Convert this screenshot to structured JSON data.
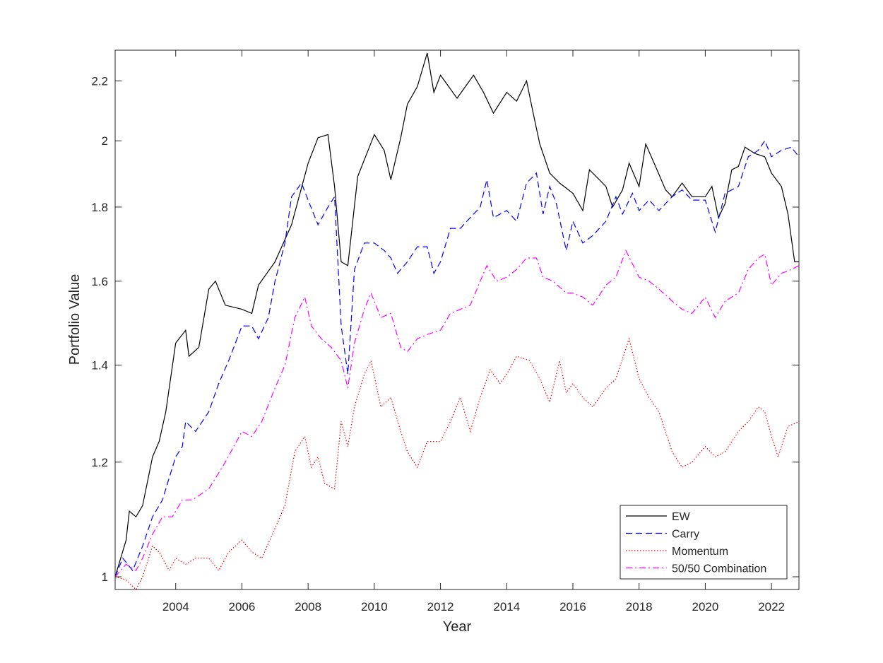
{
  "chart_data": {
    "type": "line",
    "title": "",
    "xlabel": "Year",
    "ylabel": "Portfolio Value",
    "xlim": [
      2002.17,
      2022.83
    ],
    "ylim": [
      0.98,
      2.31
    ],
    "y_scale": "log",
    "grid": false,
    "legend_position": "bottom-right",
    "x_ticks": [
      2004,
      2006,
      2008,
      2010,
      2012,
      2014,
      2016,
      2018,
      2020,
      2022
    ],
    "x_tick_labels": [
      "2004",
      "2006",
      "2008",
      "2010",
      "2012",
      "2014",
      "2016",
      "2018",
      "2020",
      "2022"
    ],
    "y_ticks": [
      1,
      1.2,
      1.4,
      1.6,
      1.8,
      2,
      2.2
    ],
    "y_tick_labels": [
      "1",
      "1.2",
      "1.4",
      "1.6",
      "1.8",
      "2",
      "2.2"
    ],
    "series": [
      {
        "name": "EW",
        "color": "#000000",
        "dash": "solid",
        "points": [
          [
            2002.17,
            1.0
          ],
          [
            2002.5,
            1.06
          ],
          [
            2002.6,
            1.11
          ],
          [
            2002.8,
            1.1
          ],
          [
            2003.0,
            1.12
          ],
          [
            2003.3,
            1.21
          ],
          [
            2003.5,
            1.24
          ],
          [
            2003.7,
            1.3
          ],
          [
            2004.0,
            1.45
          ],
          [
            2004.3,
            1.48
          ],
          [
            2004.4,
            1.42
          ],
          [
            2004.7,
            1.44
          ],
          [
            2005.0,
            1.58
          ],
          [
            2005.2,
            1.6
          ],
          [
            2005.5,
            1.54
          ],
          [
            2006.0,
            1.53
          ],
          [
            2006.3,
            1.52
          ],
          [
            2006.5,
            1.59
          ],
          [
            2007.0,
            1.65
          ],
          [
            2007.5,
            1.75
          ],
          [
            2008.0,
            1.93
          ],
          [
            2008.3,
            2.01
          ],
          [
            2008.6,
            2.02
          ],
          [
            2008.8,
            1.86
          ],
          [
            2009.0,
            1.65
          ],
          [
            2009.2,
            1.64
          ],
          [
            2009.5,
            1.89
          ],
          [
            2010.0,
            2.02
          ],
          [
            2010.3,
            1.97
          ],
          [
            2010.5,
            1.88
          ],
          [
            2010.8,
            2.01
          ],
          [
            2011.0,
            2.12
          ],
          [
            2011.3,
            2.18
          ],
          [
            2011.6,
            2.3
          ],
          [
            2011.8,
            2.16
          ],
          [
            2012.0,
            2.22
          ],
          [
            2012.5,
            2.14
          ],
          [
            2013.0,
            2.22
          ],
          [
            2013.3,
            2.16
          ],
          [
            2013.6,
            2.09
          ],
          [
            2014.0,
            2.16
          ],
          [
            2014.3,
            2.13
          ],
          [
            2014.6,
            2.2
          ],
          [
            2014.8,
            2.09
          ],
          [
            2015.0,
            1.99
          ],
          [
            2015.3,
            1.9
          ],
          [
            2015.6,
            1.87
          ],
          [
            2016.0,
            1.84
          ],
          [
            2016.3,
            1.79
          ],
          [
            2016.5,
            1.91
          ],
          [
            2016.8,
            1.88
          ],
          [
            2017.0,
            1.86
          ],
          [
            2017.2,
            1.8
          ],
          [
            2017.5,
            1.85
          ],
          [
            2017.7,
            1.93
          ],
          [
            2018.0,
            1.86
          ],
          [
            2018.2,
            1.99
          ],
          [
            2018.5,
            1.92
          ],
          [
            2018.8,
            1.85
          ],
          [
            2019.0,
            1.83
          ],
          [
            2019.3,
            1.87
          ],
          [
            2019.6,
            1.83
          ],
          [
            2020.0,
            1.83
          ],
          [
            2020.2,
            1.86
          ],
          [
            2020.4,
            1.77
          ],
          [
            2020.6,
            1.81
          ],
          [
            2020.8,
            1.91
          ],
          [
            2021.0,
            1.92
          ],
          [
            2021.2,
            1.98
          ],
          [
            2021.5,
            1.96
          ],
          [
            2021.8,
            1.95
          ],
          [
            2022.0,
            1.9
          ],
          [
            2022.3,
            1.86
          ],
          [
            2022.5,
            1.78
          ],
          [
            2022.7,
            1.65
          ],
          [
            2022.83,
            1.65
          ]
        ]
      },
      {
        "name": "Carry",
        "color": "#0000ff",
        "dash": "dashed",
        "points": [
          [
            2002.17,
            1.0
          ],
          [
            2002.4,
            1.03
          ],
          [
            2002.7,
            1.01
          ],
          [
            2003.0,
            1.05
          ],
          [
            2003.3,
            1.1
          ],
          [
            2003.6,
            1.13
          ],
          [
            2003.8,
            1.17
          ],
          [
            2004.0,
            1.21
          ],
          [
            2004.2,
            1.23
          ],
          [
            2004.3,
            1.28
          ],
          [
            2004.6,
            1.26
          ],
          [
            2005.0,
            1.3
          ],
          [
            2005.3,
            1.36
          ],
          [
            2005.6,
            1.41
          ],
          [
            2006.0,
            1.49
          ],
          [
            2006.3,
            1.49
          ],
          [
            2006.5,
            1.46
          ],
          [
            2006.8,
            1.51
          ],
          [
            2007.0,
            1.6
          ],
          [
            2007.3,
            1.7
          ],
          [
            2007.5,
            1.83
          ],
          [
            2007.8,
            1.87
          ],
          [
            2008.0,
            1.82
          ],
          [
            2008.3,
            1.75
          ],
          [
            2008.6,
            1.8
          ],
          [
            2008.8,
            1.83
          ],
          [
            2009.0,
            1.49
          ],
          [
            2009.2,
            1.38
          ],
          [
            2009.4,
            1.63
          ],
          [
            2009.7,
            1.7
          ],
          [
            2010.0,
            1.7
          ],
          [
            2010.3,
            1.68
          ],
          [
            2010.5,
            1.66
          ],
          [
            2010.7,
            1.62
          ],
          [
            2011.0,
            1.65
          ],
          [
            2011.3,
            1.69
          ],
          [
            2011.6,
            1.69
          ],
          [
            2011.8,
            1.62
          ],
          [
            2012.0,
            1.65
          ],
          [
            2012.3,
            1.74
          ],
          [
            2012.6,
            1.74
          ],
          [
            2012.9,
            1.77
          ],
          [
            2013.2,
            1.8
          ],
          [
            2013.4,
            1.88
          ],
          [
            2013.6,
            1.77
          ],
          [
            2014.0,
            1.79
          ],
          [
            2014.3,
            1.76
          ],
          [
            2014.6,
            1.87
          ],
          [
            2014.9,
            1.9
          ],
          [
            2015.1,
            1.78
          ],
          [
            2015.3,
            1.86
          ],
          [
            2015.5,
            1.81
          ],
          [
            2015.8,
            1.68
          ],
          [
            2016.0,
            1.76
          ],
          [
            2016.3,
            1.7
          ],
          [
            2016.6,
            1.72
          ],
          [
            2017.0,
            1.76
          ],
          [
            2017.3,
            1.83
          ],
          [
            2017.5,
            1.78
          ],
          [
            2017.8,
            1.84
          ],
          [
            2018.0,
            1.79
          ],
          [
            2018.3,
            1.82
          ],
          [
            2018.6,
            1.79
          ],
          [
            2019.0,
            1.83
          ],
          [
            2019.3,
            1.85
          ],
          [
            2019.6,
            1.82
          ],
          [
            2020.0,
            1.82
          ],
          [
            2020.3,
            1.73
          ],
          [
            2020.6,
            1.84
          ],
          [
            2021.0,
            1.86
          ],
          [
            2021.3,
            1.95
          ],
          [
            2021.6,
            1.97
          ],
          [
            2021.8,
            2.0
          ],
          [
            2022.0,
            1.95
          ],
          [
            2022.3,
            1.97
          ],
          [
            2022.6,
            1.98
          ],
          [
            2022.83,
            1.95
          ]
        ]
      },
      {
        "name": "Momentum",
        "color": "#ff0000",
        "dash": "dotted",
        "points": [
          [
            2002.17,
            1.0
          ],
          [
            2002.5,
            0.995
          ],
          [
            2002.8,
            0.98
          ],
          [
            2003.0,
            1.0
          ],
          [
            2003.3,
            1.05
          ],
          [
            2003.5,
            1.04
          ],
          [
            2003.8,
            1.01
          ],
          [
            2004.0,
            1.03
          ],
          [
            2004.3,
            1.02
          ],
          [
            2004.6,
            1.03
          ],
          [
            2005.0,
            1.03
          ],
          [
            2005.3,
            1.01
          ],
          [
            2005.6,
            1.04
          ],
          [
            2006.0,
            1.06
          ],
          [
            2006.3,
            1.04
          ],
          [
            2006.6,
            1.03
          ],
          [
            2007.0,
            1.08
          ],
          [
            2007.3,
            1.12
          ],
          [
            2007.6,
            1.22
          ],
          [
            2007.9,
            1.25
          ],
          [
            2008.1,
            1.19
          ],
          [
            2008.3,
            1.21
          ],
          [
            2008.5,
            1.16
          ],
          [
            2008.8,
            1.15
          ],
          [
            2009.0,
            1.28
          ],
          [
            2009.2,
            1.23
          ],
          [
            2009.4,
            1.31
          ],
          [
            2009.7,
            1.38
          ],
          [
            2009.9,
            1.41
          ],
          [
            2010.2,
            1.31
          ],
          [
            2010.5,
            1.33
          ],
          [
            2010.8,
            1.26
          ],
          [
            2011.0,
            1.22
          ],
          [
            2011.3,
            1.19
          ],
          [
            2011.6,
            1.24
          ],
          [
            2012.0,
            1.24
          ],
          [
            2012.3,
            1.28
          ],
          [
            2012.6,
            1.33
          ],
          [
            2012.9,
            1.26
          ],
          [
            2013.2,
            1.33
          ],
          [
            2013.5,
            1.39
          ],
          [
            2013.8,
            1.36
          ],
          [
            2014.0,
            1.38
          ],
          [
            2014.3,
            1.42
          ],
          [
            2014.7,
            1.41
          ],
          [
            2015.0,
            1.37
          ],
          [
            2015.3,
            1.32
          ],
          [
            2015.6,
            1.41
          ],
          [
            2015.8,
            1.34
          ],
          [
            2016.0,
            1.36
          ],
          [
            2016.3,
            1.33
          ],
          [
            2016.6,
            1.31
          ],
          [
            2017.0,
            1.35
          ],
          [
            2017.3,
            1.37
          ],
          [
            2017.7,
            1.46
          ],
          [
            2018.0,
            1.37
          ],
          [
            2018.3,
            1.33
          ],
          [
            2018.6,
            1.3
          ],
          [
            2019.0,
            1.22
          ],
          [
            2019.3,
            1.19
          ],
          [
            2019.6,
            1.2
          ],
          [
            2020.0,
            1.23
          ],
          [
            2020.3,
            1.21
          ],
          [
            2020.6,
            1.22
          ],
          [
            2021.0,
            1.26
          ],
          [
            2021.3,
            1.28
          ],
          [
            2021.6,
            1.31
          ],
          [
            2021.8,
            1.3
          ],
          [
            2022.0,
            1.25
          ],
          [
            2022.2,
            1.21
          ],
          [
            2022.5,
            1.27
          ],
          [
            2022.83,
            1.28
          ]
        ]
      },
      {
        "name": "50/50 Combination",
        "color": "#ff00ff",
        "dash": "dashdot",
        "points": [
          [
            2002.17,
            1.0
          ],
          [
            2002.5,
            1.02
          ],
          [
            2002.8,
            1.01
          ],
          [
            2003.0,
            1.03
          ],
          [
            2003.3,
            1.07
          ],
          [
            2003.6,
            1.1
          ],
          [
            2003.9,
            1.1
          ],
          [
            2004.2,
            1.13
          ],
          [
            2004.5,
            1.13
          ],
          [
            2005.0,
            1.15
          ],
          [
            2005.5,
            1.2
          ],
          [
            2006.0,
            1.26
          ],
          [
            2006.3,
            1.25
          ],
          [
            2006.6,
            1.28
          ],
          [
            2007.0,
            1.35
          ],
          [
            2007.3,
            1.4
          ],
          [
            2007.6,
            1.51
          ],
          [
            2007.9,
            1.56
          ],
          [
            2008.1,
            1.49
          ],
          [
            2008.4,
            1.46
          ],
          [
            2008.7,
            1.44
          ],
          [
            2009.0,
            1.41
          ],
          [
            2009.2,
            1.35
          ],
          [
            2009.4,
            1.45
          ],
          [
            2009.7,
            1.53
          ],
          [
            2009.9,
            1.57
          ],
          [
            2010.2,
            1.51
          ],
          [
            2010.5,
            1.52
          ],
          [
            2010.8,
            1.44
          ],
          [
            2011.0,
            1.43
          ],
          [
            2011.3,
            1.46
          ],
          [
            2011.6,
            1.47
          ],
          [
            2012.0,
            1.48
          ],
          [
            2012.3,
            1.52
          ],
          [
            2012.6,
            1.53
          ],
          [
            2012.9,
            1.54
          ],
          [
            2013.2,
            1.6
          ],
          [
            2013.4,
            1.64
          ],
          [
            2013.7,
            1.6
          ],
          [
            2014.0,
            1.61
          ],
          [
            2014.3,
            1.63
          ],
          [
            2014.6,
            1.66
          ],
          [
            2014.9,
            1.66
          ],
          [
            2015.1,
            1.61
          ],
          [
            2015.4,
            1.6
          ],
          [
            2015.8,
            1.57
          ],
          [
            2016.0,
            1.57
          ],
          [
            2016.3,
            1.56
          ],
          [
            2016.6,
            1.54
          ],
          [
            2017.0,
            1.59
          ],
          [
            2017.3,
            1.61
          ],
          [
            2017.6,
            1.68
          ],
          [
            2018.0,
            1.61
          ],
          [
            2018.3,
            1.6
          ],
          [
            2018.6,
            1.58
          ],
          [
            2019.0,
            1.55
          ],
          [
            2019.3,
            1.53
          ],
          [
            2019.6,
            1.52
          ],
          [
            2020.0,
            1.56
          ],
          [
            2020.3,
            1.51
          ],
          [
            2020.6,
            1.55
          ],
          [
            2021.0,
            1.57
          ],
          [
            2021.3,
            1.63
          ],
          [
            2021.6,
            1.66
          ],
          [
            2021.8,
            1.67
          ],
          [
            2022.0,
            1.59
          ],
          [
            2022.3,
            1.62
          ],
          [
            2022.6,
            1.63
          ],
          [
            2022.83,
            1.64
          ]
        ]
      }
    ]
  }
}
